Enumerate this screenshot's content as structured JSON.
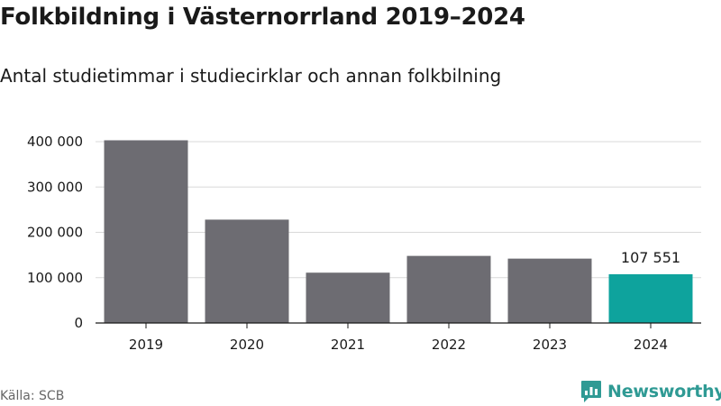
{
  "header": {
    "title": "Folkbildning i Västernorrland 2019–2024",
    "subtitle": "Antal studietimmar i studiecirklar och annan folkbilning"
  },
  "footer": {
    "source": "Källa: SCB",
    "brand": "Newsworthy",
    "brand_icon": "newsworthy-logo-icon"
  },
  "colors": {
    "bar": "#6d6c72",
    "highlight": "#0ea39d",
    "grid": "#d9d9d9",
    "axis": "#1a1a1a",
    "brand": "#2f9a94"
  },
  "chart_data": {
    "type": "bar",
    "title": "Folkbildning i Västernorrland 2019–2024",
    "subtitle": "Antal studietimmar i studiecirklar och annan folkbilning",
    "categories": [
      "2019",
      "2020",
      "2021",
      "2022",
      "2023",
      "2024"
    ],
    "values": [
      403000,
      228000,
      111000,
      148000,
      142000,
      107551
    ],
    "highlight_index": 5,
    "data_labels": [
      {
        "index": 5,
        "text": "107 551"
      }
    ],
    "y_ticks": [
      0,
      100000,
      200000,
      300000,
      400000
    ],
    "y_tick_labels": [
      "0",
      "100 000",
      "200 000",
      "300 000",
      "400 000"
    ],
    "ylim": [
      0,
      400000
    ],
    "xlabel": "",
    "ylabel": "",
    "grid": true,
    "legend": "none"
  }
}
